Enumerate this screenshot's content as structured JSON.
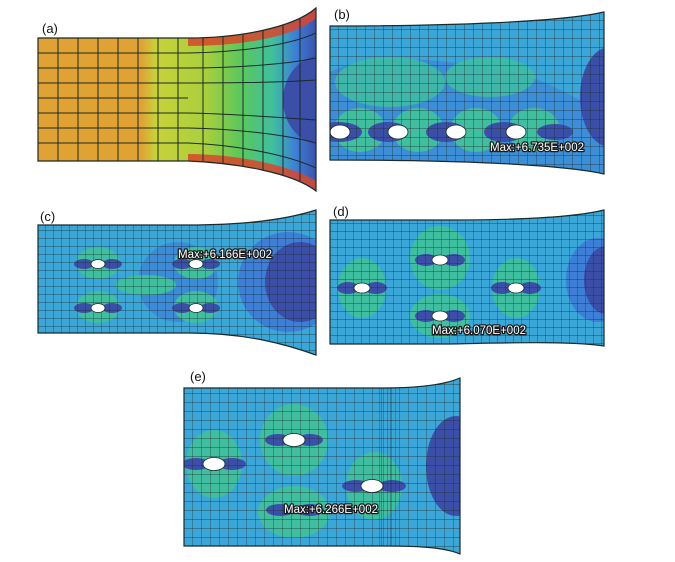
{
  "colors": {
    "background": "#ffffff",
    "mesh_line": "#1b2a2a",
    "stress_low": "#3b4fa8",
    "stress_low_mid": "#3d7fd6",
    "stress_mid": "#3ba7d8",
    "stress_mid_high": "#3fbf9f",
    "stress_high_green": "#5cc85a",
    "stress_yellow": "#c8d23a",
    "stress_orange": "#e0a232",
    "stress_red": "#d9452b",
    "hole_fill": "#ffffff"
  },
  "panels": [
    {
      "id": "a",
      "label": "(a)",
      "max_label": ""
    },
    {
      "id": "b",
      "label": "(b)",
      "max_label": "Max:+6.735E+002"
    },
    {
      "id": "c",
      "label": "(c)",
      "max_label": "Max:+6.166E+002"
    },
    {
      "id": "d",
      "label": "(d)",
      "max_label": "Max:+6.070E+002"
    },
    {
      "id": "e",
      "label": "(e)",
      "max_label": "Max:+6.266E+002"
    }
  ]
}
